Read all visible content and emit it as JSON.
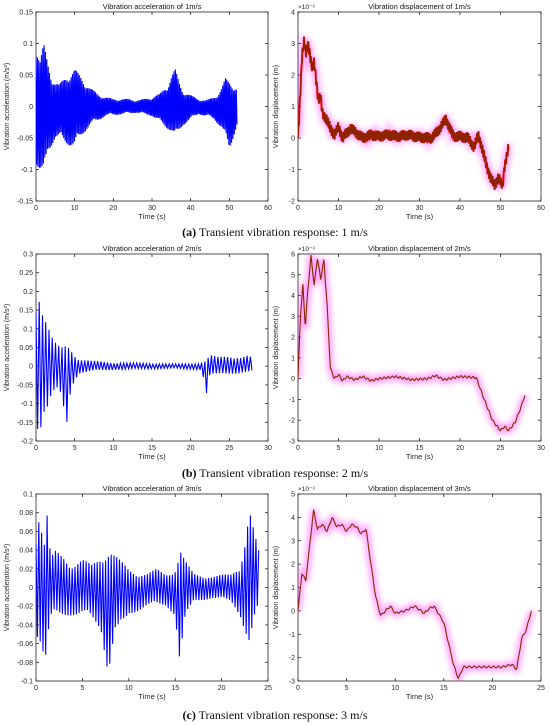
{
  "captions": [
    {
      "letter": "(a)",
      "text": " Transient vibration response: 1 m/s"
    },
    {
      "letter": "(b)",
      "text": " Transient vibration response: 2 m/s"
    },
    {
      "letter": "(c)",
      "text": " Transient vibration response: 3 m/s"
    }
  ],
  "colors": {
    "acceleration": "#0000ff",
    "displacement": "#8b2500",
    "glow": "#ff00ff",
    "accent_red": "#ff0000"
  },
  "chart_data": [
    {
      "type": "line",
      "kind": "acceleration",
      "panel": "a",
      "title": "Vibration acceleration of 1m/s",
      "xlabel": "Time (s)",
      "ylabel": "Vibration acceleration  (m/s²)",
      "xlim": [
        0,
        60
      ],
      "ylim": [
        -0.15,
        0.15
      ],
      "xticks": [
        0,
        10,
        20,
        30,
        40,
        50,
        60
      ],
      "yticks": [
        -0.15,
        -0.1,
        -0.05,
        0,
        0.05,
        0.1,
        0.15
      ],
      "ytick_labels": [
        "-0.15",
        "-0.1",
        "-0.05",
        "0",
        "0.05",
        "0.1",
        "0.15"
      ],
      "exponent": "",
      "x_end": 52,
      "envelope": [
        [
          0,
          0.11
        ],
        [
          0.3,
          0.1
        ],
        [
          1,
          0.075
        ],
        [
          2,
          0.1
        ],
        [
          3,
          0.072
        ],
        [
          4,
          0.05
        ],
        [
          5,
          0.04
        ],
        [
          6,
          0.035
        ],
        [
          8,
          0.05
        ],
        [
          10,
          0.06
        ],
        [
          12,
          0.045
        ],
        [
          14,
          0.03
        ],
        [
          16,
          0.02
        ],
        [
          18,
          0.015
        ],
        [
          20,
          0.012
        ],
        [
          24,
          0.012
        ],
        [
          26,
          0.01
        ],
        [
          28,
          0.012
        ],
        [
          30,
          0.015
        ],
        [
          32,
          0.02
        ],
        [
          34,
          0.035
        ],
        [
          35,
          0.05
        ],
        [
          36,
          0.06
        ],
        [
          37,
          0.04
        ],
        [
          38,
          0.025
        ],
        [
          40,
          0.018
        ],
        [
          42,
          0.012
        ],
        [
          44,
          0.01
        ],
        [
          46,
          0.015
        ],
        [
          47,
          0.02
        ],
        [
          48,
          0.03
        ],
        [
          49,
          0.045
        ],
        [
          50,
          0.04
        ],
        [
          51,
          0.035
        ],
        [
          52,
          0.03
        ]
      ],
      "env_neg": [
        [
          0,
          -0.09
        ],
        [
          1,
          -0.105
        ],
        [
          2,
          -0.12
        ],
        [
          3,
          -0.075
        ],
        [
          5,
          -0.05
        ],
        [
          8,
          -0.06
        ],
        [
          10,
          -0.065
        ],
        [
          12,
          -0.045
        ],
        [
          14,
          -0.03
        ],
        [
          18,
          -0.015
        ],
        [
          26,
          -0.01
        ],
        [
          30,
          -0.015
        ],
        [
          32,
          -0.025
        ],
        [
          35,
          -0.04
        ],
        [
          36,
          -0.05
        ],
        [
          38,
          -0.03
        ],
        [
          42,
          -0.012
        ],
        [
          46,
          -0.02
        ],
        [
          48,
          -0.035
        ],
        [
          50,
          -0.07
        ],
        [
          52,
          -0.03
        ]
      ],
      "osc_period": 0.35
    },
    {
      "type": "line",
      "kind": "displacement",
      "panel": "a",
      "title": "Vibration displacement of 1m/s",
      "xlabel": "Time (s)",
      "ylabel": "Vibration displacement  (m)",
      "xlim": [
        0,
        60
      ],
      "ylim": [
        -2,
        4
      ],
      "xticks": [
        0,
        10,
        20,
        30,
        40,
        50,
        60
      ],
      "yticks": [
        -2,
        -1,
        0,
        1,
        2,
        3,
        4
      ],
      "ytick_labels": [
        "-2",
        "-1",
        "0",
        "1",
        "2",
        "3",
        "4"
      ],
      "exponent": "×10⁻³",
      "points": [
        [
          0,
          0
        ],
        [
          0.6,
          1.5
        ],
        [
          1,
          2.6
        ],
        [
          1.5,
          3.05
        ],
        [
          2,
          2.7
        ],
        [
          2.5,
          3
        ],
        [
          3,
          2.6
        ],
        [
          3.5,
          2.2
        ],
        [
          4,
          2.4
        ],
        [
          4.5,
          1.8
        ],
        [
          5,
          1.2
        ],
        [
          5.6,
          1.3
        ],
        [
          6,
          0.8
        ],
        [
          7,
          0.6
        ],
        [
          8,
          0.3
        ],
        [
          9,
          0.1
        ],
        [
          10,
          0.35
        ],
        [
          11,
          0
        ],
        [
          12,
          0.15
        ],
        [
          13,
          0.3
        ],
        [
          14,
          0.2
        ],
        [
          15,
          0.1
        ],
        [
          16,
          0
        ],
        [
          18,
          0.1
        ],
        [
          20,
          0.05
        ],
        [
          22,
          0.1
        ],
        [
          25,
          0.05
        ],
        [
          27,
          0.1
        ],
        [
          30,
          0.02
        ],
        [
          33,
          0
        ],
        [
          35,
          0.3
        ],
        [
          36.5,
          0.6
        ],
        [
          37.5,
          0.3
        ],
        [
          38.5,
          0.05
        ],
        [
          40,
          0.05
        ],
        [
          42,
          0
        ],
        [
          43.5,
          -0.3
        ],
        [
          44.5,
          0.1
        ],
        [
          45.5,
          -0.35
        ],
        [
          46.5,
          -0.85
        ],
        [
          47.5,
          -1.25
        ],
        [
          48.5,
          -1.5
        ],
        [
          49.5,
          -1.25
        ],
        [
          50.5,
          -1.55
        ],
        [
          51,
          -0.9
        ],
        [
          52,
          -0.3
        ]
      ],
      "ripple": 0.18,
      "ripple_period": 0.35
    },
    {
      "type": "line",
      "kind": "acceleration",
      "panel": "b",
      "title": "Vibration acceleration of 2m/s",
      "xlabel": "Time (s)",
      "ylabel": "Vibration acceleration  (m/s²)",
      "xlim": [
        0,
        30
      ],
      "ylim": [
        -0.2,
        0.3
      ],
      "xticks": [
        0,
        5,
        10,
        15,
        20,
        25,
        30
      ],
      "yticks": [
        -0.2,
        -0.15,
        -0.1,
        -0.05,
        0,
        0.05,
        0.1,
        0.15,
        0.2,
        0.25,
        0.3
      ],
      "ytick_labels": [
        "-0.2",
        "-0.15",
        "-0.1",
        "-0.05",
        "0",
        "0.05",
        "0.1",
        "0.15",
        "0.2",
        "0.25",
        "0.3"
      ],
      "exponent": "",
      "x_end": 28,
      "envelope": [
        [
          0,
          0.2
        ],
        [
          0.4,
          0.22
        ],
        [
          0.9,
          0.15
        ],
        [
          1.4,
          0.12
        ],
        [
          2,
          0.08
        ],
        [
          2.6,
          0.06
        ],
        [
          3.2,
          0.05
        ],
        [
          4,
          0.06
        ],
        [
          4.5,
          0.05
        ],
        [
          5.5,
          0.02
        ],
        [
          7,
          0.015
        ],
        [
          10,
          0.01
        ],
        [
          14,
          0.008
        ],
        [
          18,
          0.006
        ],
        [
          21,
          0.008
        ],
        [
          22,
          0.015
        ],
        [
          22.5,
          0.03
        ],
        [
          23.5,
          0.025
        ],
        [
          25,
          0.03
        ],
        [
          26.5,
          0.025
        ],
        [
          27.5,
          0.03
        ],
        [
          28,
          0.02
        ]
      ],
      "env_neg": [
        [
          0,
          -0.16
        ],
        [
          0.5,
          -0.18
        ],
        [
          1,
          -0.13
        ],
        [
          1.5,
          -0.12
        ],
        [
          2,
          -0.09
        ],
        [
          3,
          -0.07
        ],
        [
          4,
          -0.16
        ],
        [
          4.5,
          -0.06
        ],
        [
          5.5,
          -0.02
        ],
        [
          8,
          -0.012
        ],
        [
          12,
          -0.008
        ],
        [
          18,
          -0.006
        ],
        [
          21.5,
          -0.01
        ],
        [
          22,
          -0.09
        ],
        [
          22.4,
          -0.03
        ],
        [
          24,
          -0.02
        ],
        [
          26,
          -0.02
        ],
        [
          28,
          -0.015
        ]
      ],
      "osc_period": 0.42
    },
    {
      "type": "line",
      "kind": "displacement",
      "panel": "b",
      "title": "Vibration displacement of 2m/s",
      "xlabel": "Time (s)",
      "ylabel": "Vibration displacement  (m)",
      "xlim": [
        0,
        30
      ],
      "ylim": [
        -3,
        6
      ],
      "xticks": [
        0,
        5,
        10,
        15,
        20,
        25,
        30
      ],
      "yticks": [
        -3,
        -2,
        -1,
        0,
        1,
        2,
        3,
        4,
        5,
        6
      ],
      "ytick_labels": [
        "-3",
        "-2",
        "-1",
        "0",
        "1",
        "2",
        "3",
        "4",
        "5",
        "6"
      ],
      "exponent": "×10⁻³",
      "points": [
        [
          0,
          0
        ],
        [
          0.3,
          3
        ],
        [
          0.6,
          4.5
        ],
        [
          0.9,
          2.5
        ],
        [
          1.2,
          4.2
        ],
        [
          1.6,
          5.9
        ],
        [
          2,
          4.5
        ],
        [
          2.4,
          5.8
        ],
        [
          2.8,
          4.8
        ],
        [
          3.2,
          5.7
        ],
        [
          3.6,
          3.5
        ],
        [
          4,
          0.5
        ],
        [
          4.5,
          0
        ],
        [
          5,
          0.2
        ],
        [
          5.5,
          -0.1
        ],
        [
          6,
          0.1
        ],
        [
          7,
          -0.05
        ],
        [
          8,
          0.1
        ],
        [
          9,
          -0.1
        ],
        [
          10,
          0
        ],
        [
          12,
          0.1
        ],
        [
          14,
          -0.05
        ],
        [
          16,
          0
        ],
        [
          17,
          0.15
        ],
        [
          18,
          -0.05
        ],
        [
          20,
          0.1
        ],
        [
          22,
          0.05
        ],
        [
          23,
          -1
        ],
        [
          24,
          -2
        ],
        [
          25,
          -2.5
        ],
        [
          25.5,
          -2.3
        ],
        [
          26,
          -2.5
        ],
        [
          26.8,
          -2.1
        ],
        [
          27.5,
          -1.4
        ],
        [
          28,
          -0.8
        ]
      ],
      "ripple": 0.05,
      "ripple_period": 0.5
    },
    {
      "type": "line",
      "kind": "acceleration",
      "panel": "c",
      "title": "Vibration acceleration of 3m/s",
      "xlabel": "Time (s)",
      "ylabel": "Vibration acceleration (m/s²)",
      "xlim": [
        0,
        25
      ],
      "ylim": [
        -0.1,
        0.1
      ],
      "xticks": [
        0,
        5,
        10,
        15,
        20,
        25
      ],
      "yticks": [
        -0.1,
        -0.08,
        -0.06,
        -0.04,
        -0.02,
        0,
        0.02,
        0.04,
        0.06,
        0.08,
        0.1
      ],
      "ytick_labels": [
        "-0.1",
        "-0.08",
        "-0.06",
        "-0.04",
        "-0.02",
        "0",
        "0.02",
        "0.04",
        "0.06",
        "0.08",
        "0.1"
      ],
      "exponent": "",
      "x_end": 24,
      "envelope": [
        [
          0,
          0.065
        ],
        [
          0.4,
          0.096
        ],
        [
          0.8,
          0.04
        ],
        [
          1.2,
          0.08
        ],
        [
          1.6,
          0.03
        ],
        [
          2,
          0.04
        ],
        [
          3,
          0.035
        ],
        [
          4,
          0.025
        ],
        [
          5,
          0.03
        ],
        [
          6,
          0.025
        ],
        [
          7,
          0.035
        ],
        [
          8,
          0.04
        ],
        [
          9,
          0.03
        ],
        [
          10,
          0.02
        ],
        [
          11,
          0.015
        ],
        [
          12,
          0.015
        ],
        [
          13,
          0.02
        ],
        [
          14,
          0.015
        ],
        [
          15,
          0.02
        ],
        [
          15.6,
          0.04
        ],
        [
          16,
          0.03
        ],
        [
          17,
          0.015
        ],
        [
          19,
          0.012
        ],
        [
          21,
          0.015
        ],
        [
          22,
          0.025
        ],
        [
          22.5,
          0.05
        ],
        [
          23,
          0.085
        ],
        [
          23.5,
          0.06
        ],
        [
          24,
          0.04
        ]
      ],
      "env_neg": [
        [
          0,
          -0.05
        ],
        [
          0.5,
          -0.06
        ],
        [
          1,
          -0.085
        ],
        [
          1.5,
          -0.04
        ],
        [
          2,
          -0.03
        ],
        [
          3,
          -0.03
        ],
        [
          4,
          -0.03
        ],
        [
          5,
          -0.03
        ],
        [
          6,
          -0.035
        ],
        [
          7,
          -0.045
        ],
        [
          7.8,
          -0.095
        ],
        [
          8.5,
          -0.05
        ],
        [
          9,
          -0.05
        ],
        [
          10,
          -0.03
        ],
        [
          12,
          -0.02
        ],
        [
          14,
          -0.02
        ],
        [
          15,
          -0.03
        ],
        [
          15.5,
          -0.085
        ],
        [
          16,
          -0.04
        ],
        [
          17,
          -0.015
        ],
        [
          19,
          -0.012
        ],
        [
          21,
          -0.015
        ],
        [
          22,
          -0.03
        ],
        [
          23,
          -0.065
        ],
        [
          23.5,
          -0.04
        ],
        [
          24,
          -0.02
        ]
      ],
      "osc_period": 0.3
    },
    {
      "type": "line",
      "kind": "displacement",
      "panel": "c",
      "title": "Vibration displacement of 3m/s",
      "xlabel": "Time (s)",
      "ylabel": "Vibration displacement  (m)",
      "xlim": [
        0,
        25
      ],
      "ylim": [
        -3,
        5
      ],
      "xticks": [
        0,
        5,
        10,
        15,
        20,
        25
      ],
      "yticks": [
        -3,
        -2,
        -1,
        0,
        1,
        2,
        3,
        4,
        5
      ],
      "ytick_labels": [
        "-3",
        "-2",
        "-1",
        "0",
        "1",
        "2",
        "3",
        "4",
        "5"
      ],
      "exponent": "×10⁻³",
      "points": [
        [
          0,
          0
        ],
        [
          0.4,
          1.6
        ],
        [
          0.8,
          1.3
        ],
        [
          1.2,
          2.8
        ],
        [
          1.6,
          4.3
        ],
        [
          2,
          3.5
        ],
        [
          2.5,
          3.7
        ],
        [
          3,
          3.4
        ],
        [
          3.5,
          4
        ],
        [
          4,
          3.6
        ],
        [
          4.5,
          3.7
        ],
        [
          5,
          3.4
        ],
        [
          5.5,
          3.7
        ],
        [
          6,
          3.6
        ],
        [
          6.5,
          3.3
        ],
        [
          7,
          3.5
        ],
        [
          7.5,
          2
        ],
        [
          8,
          0.6
        ],
        [
          8.5,
          -0.2
        ],
        [
          9,
          0
        ],
        [
          9.5,
          0.2
        ],
        [
          10,
          -0.1
        ],
        [
          11,
          0
        ],
        [
          12,
          0.2
        ],
        [
          13,
          -0.1
        ],
        [
          13.5,
          0.1
        ],
        [
          14,
          0.2
        ],
        [
          15,
          -0.5
        ],
        [
          16,
          -2.3
        ],
        [
          16.5,
          -2.9
        ],
        [
          17,
          -2.4
        ],
        [
          18,
          -2.4
        ],
        [
          19,
          -2.4
        ],
        [
          20,
          -2.4
        ],
        [
          21,
          -2.4
        ],
        [
          22,
          -2.3
        ],
        [
          22.5,
          -2.5
        ],
        [
          23,
          -1.2
        ],
        [
          23.5,
          -0.8
        ],
        [
          24,
          0
        ]
      ],
      "ripple": 0.04,
      "ripple_period": 0.5
    }
  ]
}
